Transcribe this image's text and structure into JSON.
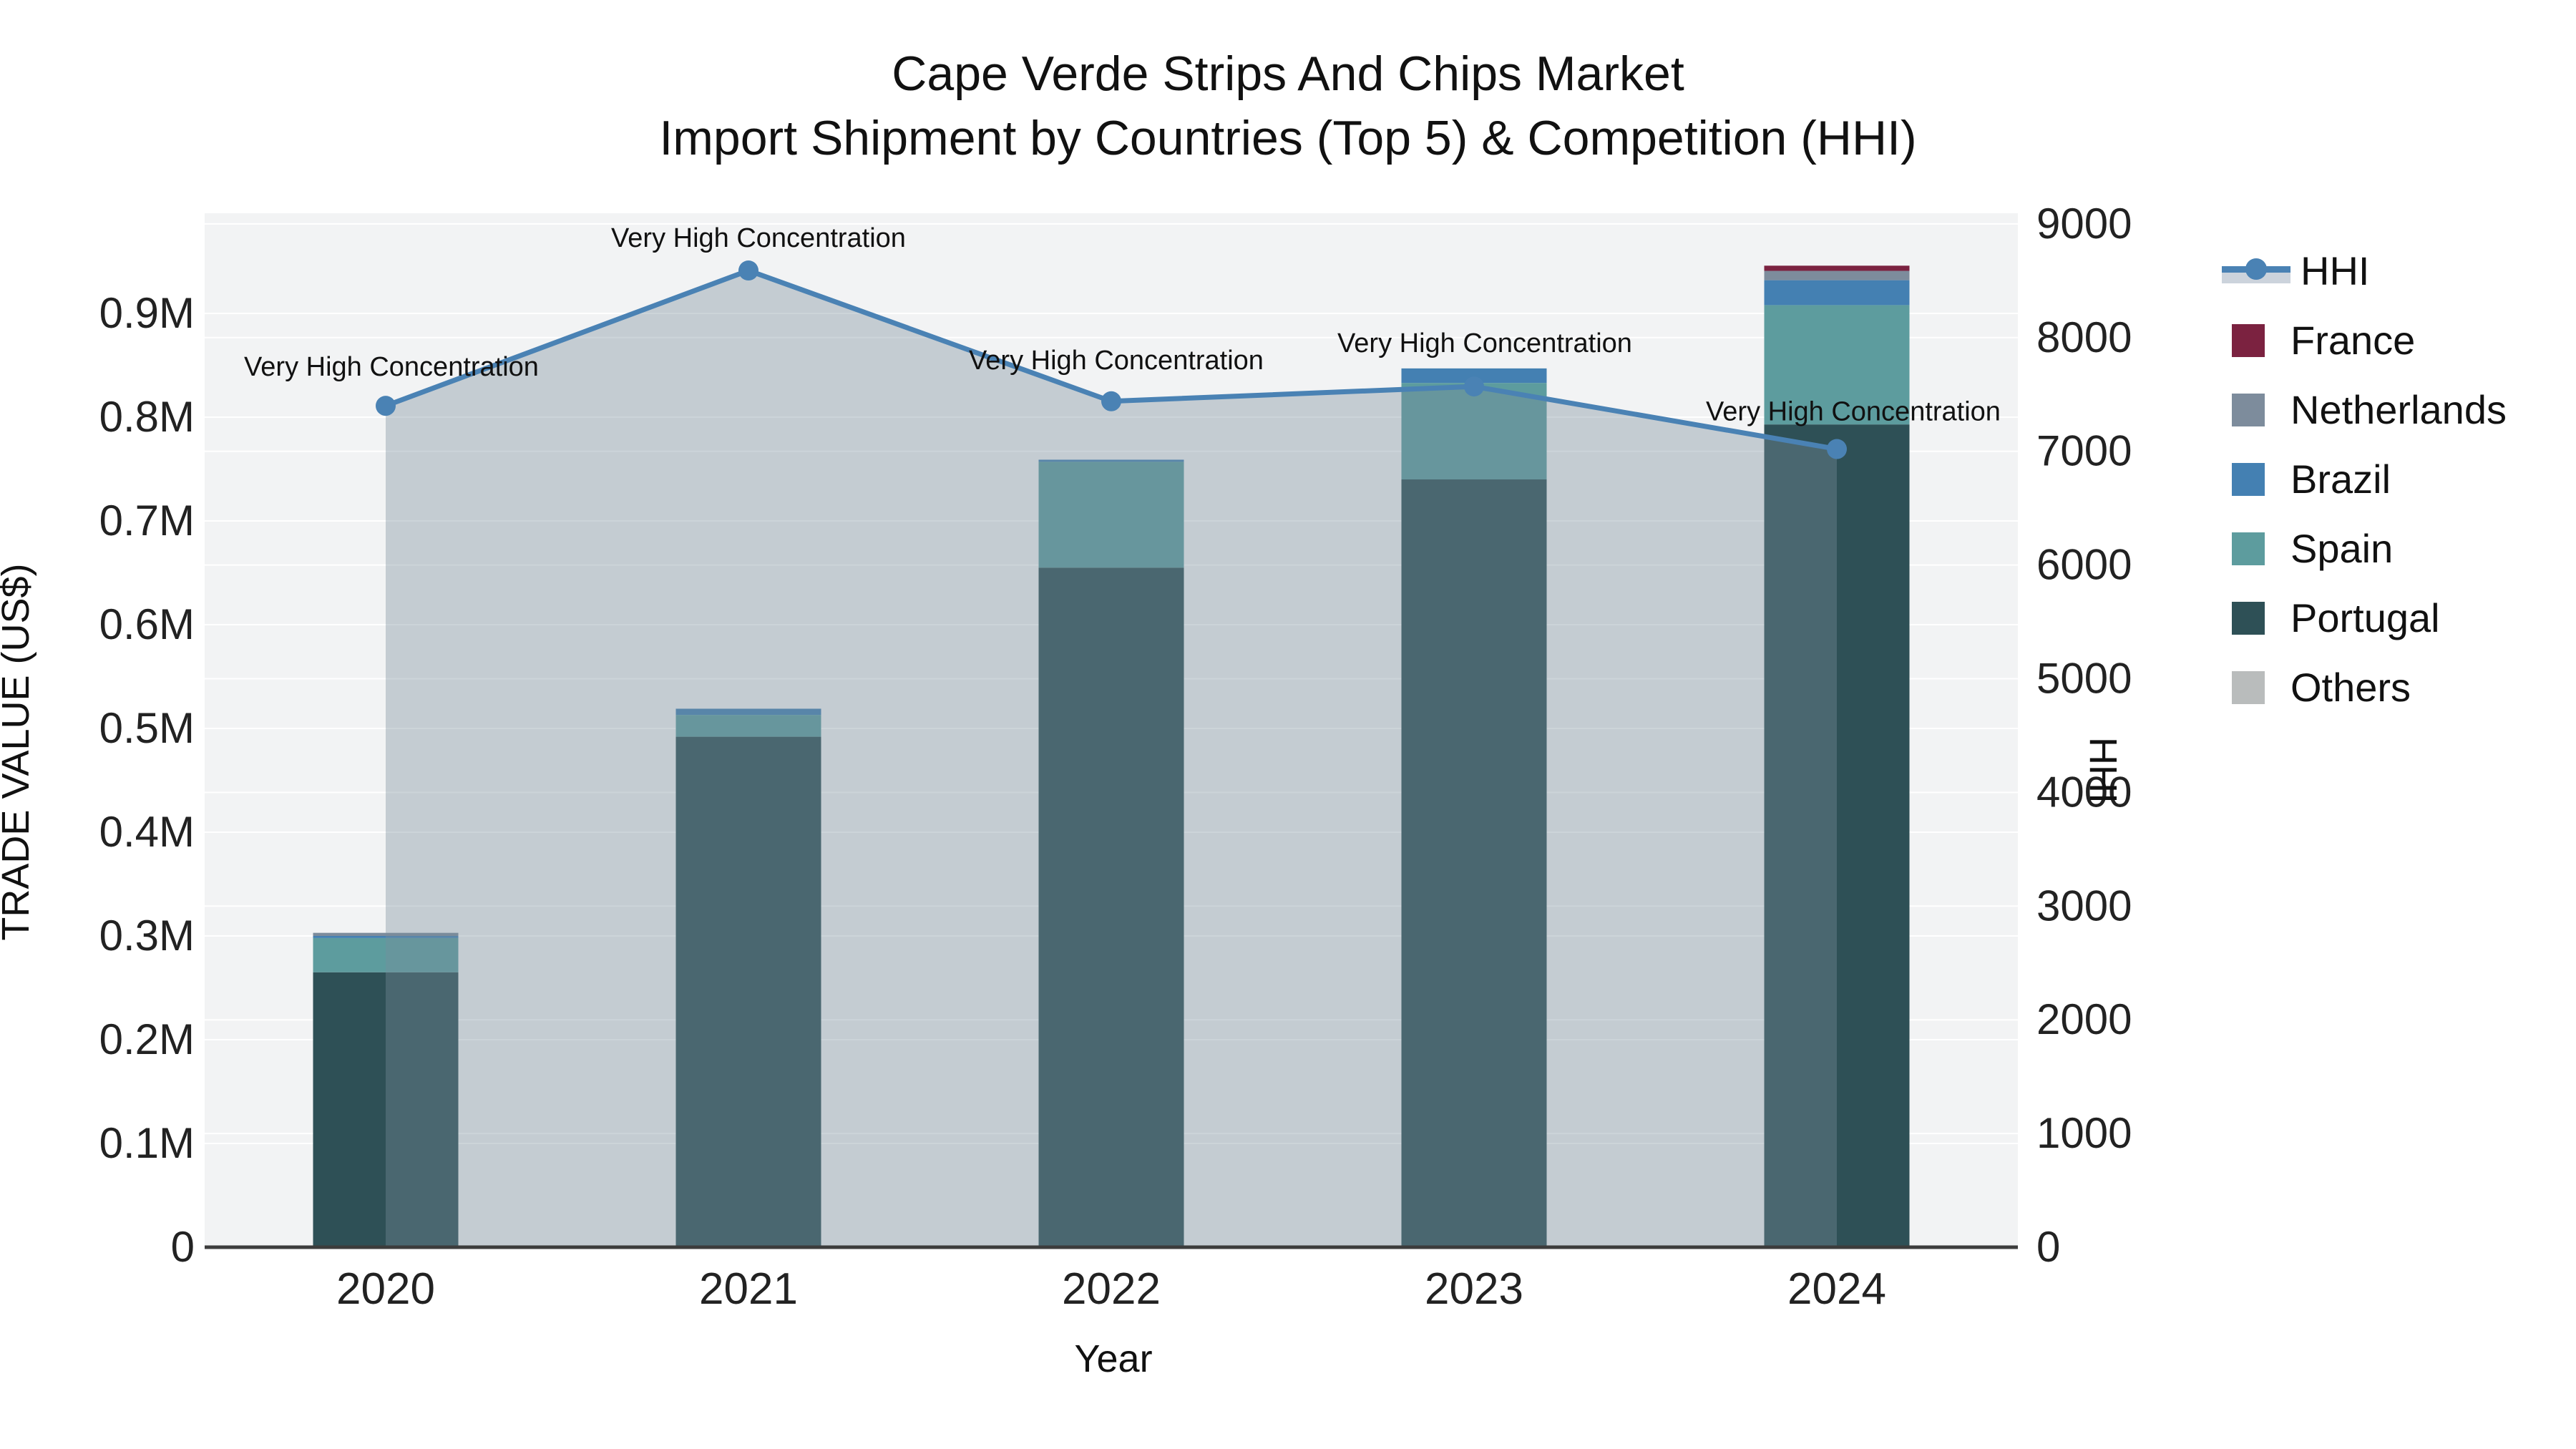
{
  "title": {
    "line1": "Cape Verde Strips And Chips Market",
    "line2": "Import Shipment by Countries (Top 5) & Competition (HHI)"
  },
  "axes": {
    "x_title": "Year",
    "y_left_title": "TRADE VALUE (US$)",
    "y_right_title": "HHI"
  },
  "legend": {
    "items": [
      {
        "label": "HHI",
        "type": "line",
        "color": "#4a82b4",
        "fill_sample": "#ccd3dc"
      },
      {
        "label": "France",
        "type": "swatch",
        "color": "#7b2240"
      },
      {
        "label": "Netherlands",
        "type": "swatch",
        "color": "#7d8c9c"
      },
      {
        "label": "Brazil",
        "type": "swatch",
        "color": "#4480b2"
      },
      {
        "label": "Spain",
        "type": "swatch",
        "color": "#5d9c9e"
      },
      {
        "label": "Portugal",
        "type": "swatch",
        "color": "#2e5056"
      },
      {
        "label": "Others",
        "type": "swatch",
        "color": "#b9bcbc"
      }
    ]
  },
  "chart_data": {
    "type": "bar+line",
    "categories": [
      "2020",
      "2021",
      "2022",
      "2023",
      "2024"
    ],
    "bar_unit": "M US$",
    "series": [
      {
        "name": "Portugal",
        "axis": "left",
        "values": [
          0.265,
          0.492,
          0.655,
          0.74,
          0.793
        ]
      },
      {
        "name": "Spain",
        "axis": "left",
        "values": [
          0.033,
          0.021,
          0.102,
          0.093,
          0.115
        ]
      },
      {
        "name": "Brazil",
        "axis": "left",
        "values": [
          0.002,
          0.006,
          0.002,
          0.014,
          0.024
        ]
      },
      {
        "name": "Netherlands",
        "axis": "left",
        "values": [
          0.003,
          0.0,
          0.0,
          0.0,
          0.009
        ]
      },
      {
        "name": "France",
        "axis": "left",
        "values": [
          0.0,
          0.0,
          0.0,
          0.0,
          0.005
        ]
      },
      {
        "name": "Others",
        "axis": "left",
        "values": [
          0.0,
          0.0,
          0.0,
          0.0,
          0.0
        ]
      }
    ],
    "line_series": {
      "name": "HHI",
      "axis": "right",
      "values": [
        7400,
        8590,
        7440,
        7570,
        7020
      ],
      "color": "#4a82b4",
      "fill_color_rgba": "rgba(120,142,155,0.38)"
    },
    "annotations": [
      {
        "text": "Very High Concentration",
        "point": 0
      },
      {
        "text": "Very High Concentration",
        "point": 1
      },
      {
        "text": "Very High Concentration",
        "point": 2
      },
      {
        "text": "Very High Concentration",
        "point": 3
      },
      {
        "text": "Very High Concentration",
        "point": 4
      }
    ],
    "y_left": {
      "ticks": [
        0,
        0.1,
        0.2,
        0.3,
        0.4,
        0.5,
        0.6,
        0.7,
        0.8,
        0.9
      ],
      "tick_labels": [
        "0",
        "0.1M",
        "0.2M",
        "0.3M",
        "0.4M",
        "0.5M",
        "0.6M",
        "0.7M",
        "0.8M",
        "0.9M"
      ],
      "range": [
        0,
        0.9965
      ]
    },
    "y_right": {
      "ticks": [
        0,
        1000,
        2000,
        3000,
        4000,
        5000,
        6000,
        7000,
        8000,
        9000
      ],
      "tick_labels": [
        "0",
        "1000",
        "2000",
        "3000",
        "4000",
        "5000",
        "6000",
        "7000",
        "8000",
        "9000"
      ],
      "range": [
        0,
        9100
      ]
    },
    "grid": true,
    "plot_bg": "#f2f3f4",
    "gridline_color": "#ffffff",
    "zeroline_color": "#3c3c3c",
    "legend_position": "right"
  }
}
